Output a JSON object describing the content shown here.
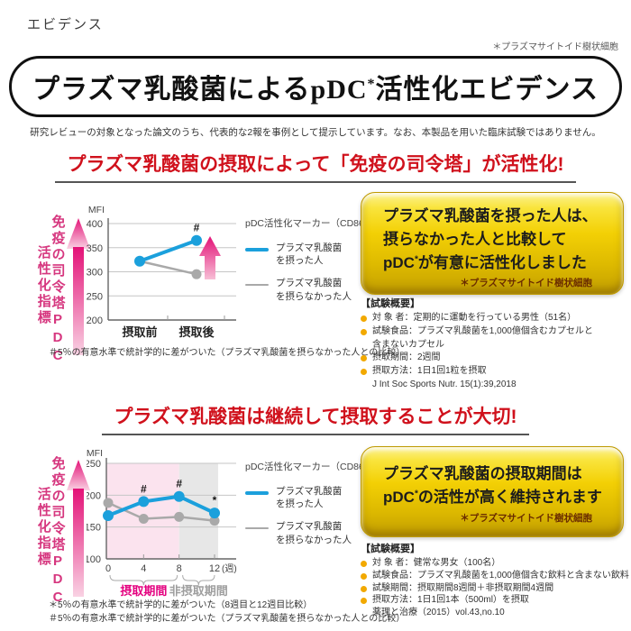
{
  "page": {
    "brand_label": "エビデンス",
    "top_note": "＊プラズマサイトイド樹状細胞",
    "title_pre": "プラズマ乳酸菌によるpDC",
    "title_sup": "*",
    "title_post": "活性化エビデンス",
    "subtitle": "研究レビューの対象となった論文のうち、代表的な2報を事例として提示しています。なお、本製品を用いた臨床試験ではありません。"
  },
  "colors": {
    "accent_red": "#d0111c",
    "line_blue": "#1ba0dc",
    "line_gray": "#a9a9a9",
    "magenta": "#e4007f",
    "gold": "#f3d005"
  },
  "section1": {
    "banner": "プラズマ乳酸菌の摂取によって「免疫の司令塔」が活性化!",
    "ylabel_line1": "免疫の司令塔PDC",
    "ylabel_line2": "活性化指標",
    "legend": {
      "title": "pDC活性化マーカー（CD86）",
      "s1_line1": "プラズマ乳酸菌",
      "s1_line2": "を摂った人",
      "s2_line1": "プラズマ乳酸菌",
      "s2_line2": "を摂らなかった人"
    },
    "box": {
      "line1": "プラズマ乳酸菌を摂った人は、",
      "line2": "摂らなかった人と比較して",
      "line3_pre": "pDC",
      "line3_sup": "*",
      "line3_post": "が有意に活性化しました",
      "note": "＊プラズマサイトイド樹状細胞"
    },
    "summary_title": "【試験概要】",
    "items": [
      "対 象 者：定期的に運動を行っている男性（51名）",
      "試験食品：プラズマ乳酸菌を1,000億個含むカプセルと",
      "含まないカプセル",
      "摂取期間：2週間",
      "摂取方法：1日1回1粒を摂取",
      "J Int Soc Sports Nutr. 15(1):39,2018"
    ],
    "footnote": "＃5％の有意水準で統計学的に差がついた（プラズマ乳酸菌を摂らなかった人との比較）"
  },
  "section2": {
    "banner": "プラズマ乳酸菌は継続して摂取することが大切!",
    "ylabel_line1": "免疫の司令塔PDC",
    "ylabel_line2": "活性化指標",
    "legend": {
      "title": "pDC活性化マーカー（CD86）",
      "s1_line1": "プラズマ乳酸菌",
      "s1_line2": "を摂った人",
      "s2_line1": "プラズマ乳酸菌",
      "s2_line2": "を摂らなかった人"
    },
    "box": {
      "line1": "プラズマ乳酸菌の摂取期間は",
      "line2_pre": "pDC",
      "line2_sup": "*",
      "line2_post": "の活性が高く維持されます",
      "note": "＊プラズマサイトイド樹状細胞"
    },
    "summary_title": "【試験概要】",
    "items": [
      "対 象 者：健常な男女（100名）",
      "試験食品：プラズマ乳酸菌を1,000億個含む飲料と含まない飲料",
      "試験期間：摂取期間8週間＋非摂取期間4週間",
      "摂取方法：1日1回1本（500ml）を摂取",
      "薬理と治療（2015）vol.43,no.10"
    ],
    "footnote1": "＊5％の有意水準で統計学的に差がついた（8週目と12週目比較）",
    "footnote2": "＃5％の有意水準で統計学的に差がついた（プラズマ乳酸菌を摂らなかった人との比較）"
  },
  "chart_data": [
    {
      "type": "line",
      "title": "pDC活性化マーカー（CD86）",
      "ylabel": "MFI",
      "ylim": [
        200,
        400
      ],
      "yticks": [
        200,
        250,
        300,
        350,
        400
      ],
      "categories": [
        "摂取前",
        "摂取後"
      ],
      "series": [
        {
          "name": "プラズマ乳酸菌を摂った人",
          "color": "#1ba0dc",
          "values": [
            322,
            365
          ],
          "point_labels": [
            "",
            "#"
          ]
        },
        {
          "name": "プラズマ乳酸菌を摂らなかった人",
          "color": "#a9a9a9",
          "values": [
            322,
            295
          ],
          "point_labels": [
            "",
            ""
          ]
        }
      ],
      "grid": true,
      "legend_position": "right",
      "emphasis_arrow": true
    },
    {
      "type": "line",
      "title": "pDC活性化マーカー（CD86）",
      "ylabel": "MFI",
      "ylim": [
        100,
        250
      ],
      "yticks": [
        100,
        150,
        200,
        250
      ],
      "x": [
        0,
        4,
        8,
        12
      ],
      "x_unit": "(週)",
      "series": [
        {
          "name": "プラズマ乳酸菌を摂った人",
          "color": "#1ba0dc",
          "values": [
            168,
            190,
            198,
            172
          ],
          "point_labels": [
            "",
            "#",
            "#",
            "*"
          ]
        },
        {
          "name": "プラズマ乳酸菌を摂らなかった人",
          "color": "#a9a9a9",
          "values": [
            188,
            163,
            166,
            160
          ],
          "point_labels": [
            "",
            "",
            "",
            ""
          ]
        }
      ],
      "regions": [
        {
          "from": 0,
          "to": 8,
          "color": "#fbe3ee",
          "label": "摂取期間",
          "label_color": "#e4007f"
        },
        {
          "from": 8,
          "to": 12.4,
          "color": "#e7e7e7",
          "label": "非摂取期間",
          "label_color": "#9e9e9e"
        }
      ],
      "grid": true,
      "legend_position": "right"
    }
  ]
}
